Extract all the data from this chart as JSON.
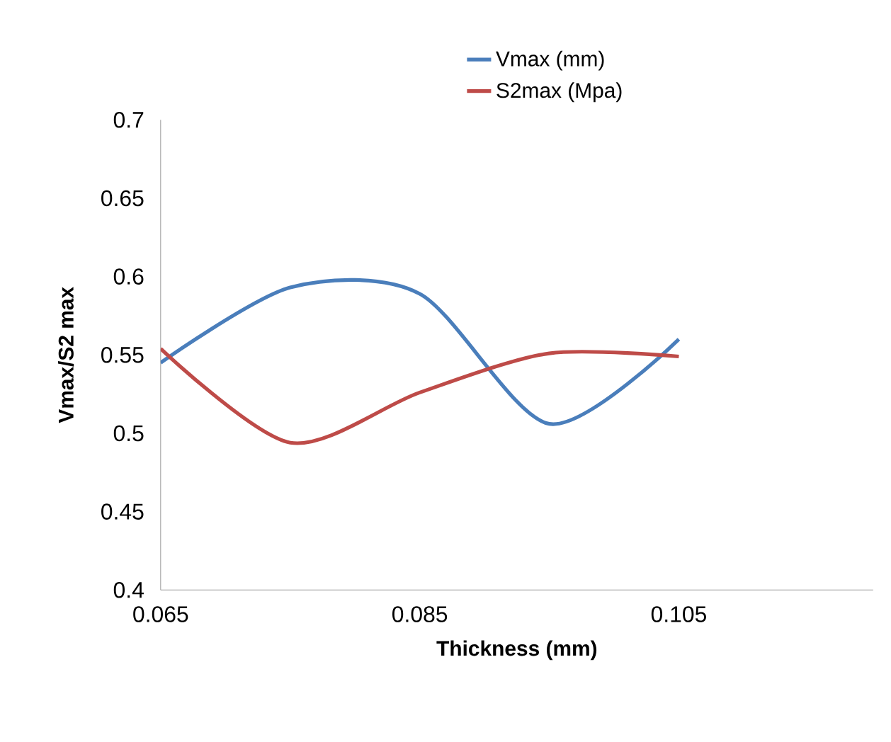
{
  "chart_data": {
    "type": "line",
    "xlabel": "Thickness (mm)",
    "ylabel": "Vmax/S2 max",
    "x": [
      0.065,
      0.075,
      0.085,
      0.095,
      0.105
    ],
    "series": [
      {
        "name": "Vmax (mm)",
        "color": "#4a7ebb",
        "values": [
          0.545,
          0.593,
          0.589,
          0.506,
          0.56
        ]
      },
      {
        "name": "S2max (Mpa)",
        "color": "#be4b48",
        "values": [
          0.554,
          0.494,
          0.526,
          0.551,
          0.549
        ]
      }
    ],
    "xlim": [
      0.065,
      0.12
    ],
    "xticks": [
      0.065,
      0.085,
      0.105
    ],
    "ylim": [
      0.4,
      0.7
    ],
    "yticks": [
      0.4,
      0.45,
      0.5,
      0.55,
      0.6,
      0.65,
      0.7
    ],
    "grid": false,
    "legend": "top",
    "marker": "none",
    "line_style": "solid"
  }
}
